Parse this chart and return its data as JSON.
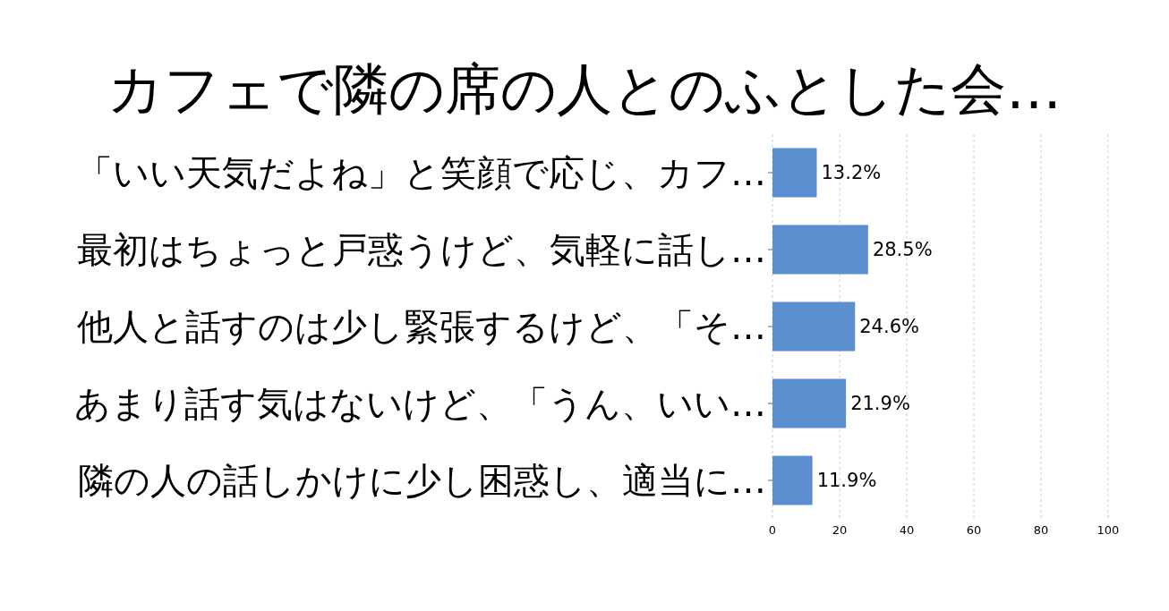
{
  "chart_data": {
    "type": "bar",
    "orientation": "horizontal",
    "title": "カフェで隣の席の人とのふとした会…",
    "categories": [
      "「いい天気だよね」と笑顔で応じ、カフ…",
      "最初はちょっと戸惑うけど、気軽に話し…",
      "他人と話すのは少し緊張するけど、「そ…",
      "あまり話す気はないけど、「うん、いい…",
      "隣の人の話しかけに少し困惑し、適当に…"
    ],
    "values": [
      13.2,
      28.5,
      24.6,
      21.9,
      11.9
    ],
    "value_labels": [
      "13.2%",
      "28.5%",
      "24.6%",
      "21.9%",
      "11.9%"
    ],
    "color": "#5b8fd0",
    "xlim": [
      0,
      100
    ],
    "xticks": [
      0,
      20,
      40,
      60,
      80,
      100
    ],
    "grid": "x"
  }
}
